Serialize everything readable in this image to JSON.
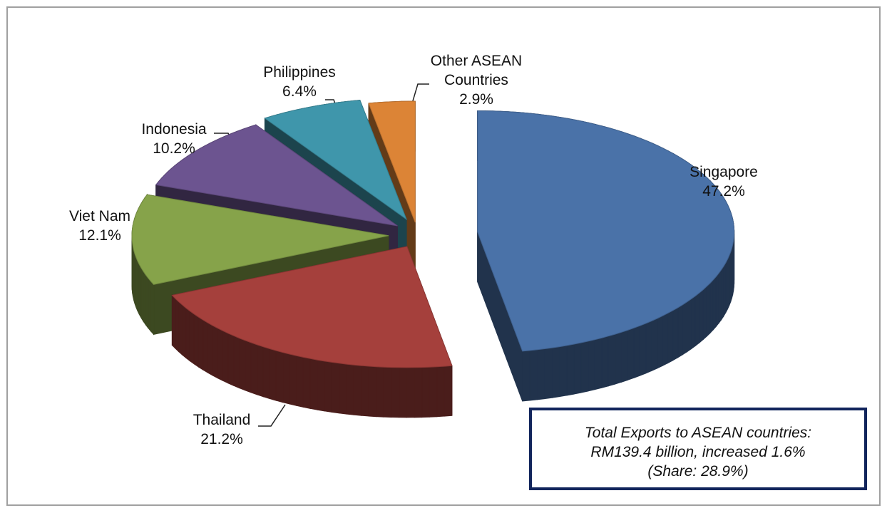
{
  "chart_data": {
    "type": "pie",
    "categories": [
      "Singapore",
      "Thailand",
      "Viet Nam",
      "Indonesia",
      "Philippines",
      "Other ASEAN Countries"
    ],
    "values": [
      47.2,
      21.2,
      12.1,
      10.2,
      6.4,
      2.9
    ],
    "value_labels": [
      "47.2%",
      "21.2%",
      "12.1%",
      "10.2%",
      "6.4%",
      "2.9%"
    ],
    "colors": [
      "#4a72a8",
      "#a5403c",
      "#86a34a",
      "#6c5490",
      "#3f96ab",
      "#dc8436"
    ],
    "annotation": [
      "Total Exports to ASEAN countries:",
      "RM139.4 billion, increased 1.6%",
      "(Share: 28.9%)"
    ]
  }
}
